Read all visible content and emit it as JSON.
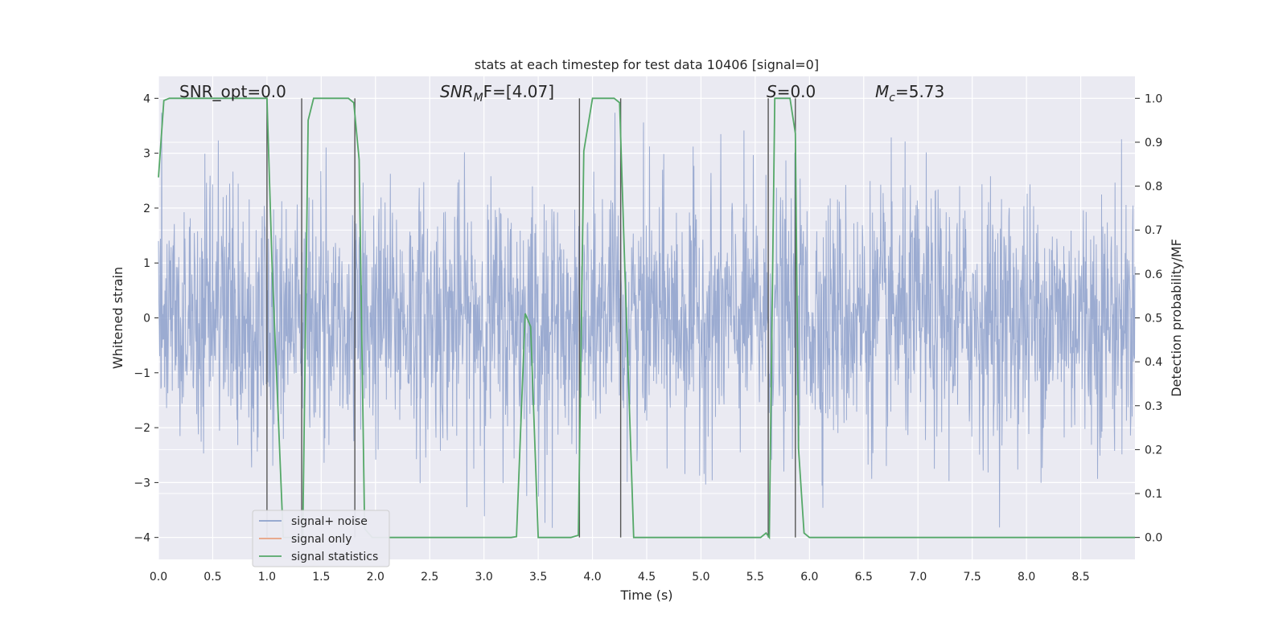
{
  "chart_data": {
    "type": "line",
    "title": "stats at each timestep for test data 10406 [signal=0]",
    "xlabel": "Time (s)",
    "ylabel": "Whitened strain",
    "y2label": "Detection probability/MF",
    "xlim": [
      0.0,
      9.0
    ],
    "ylim": [
      -4.4,
      4.4
    ],
    "y2lim": [
      -0.05,
      1.05
    ],
    "xticks": [
      "0.0",
      "0.5",
      "1.0",
      "1.5",
      "2.0",
      "2.5",
      "3.0",
      "3.5",
      "4.0",
      "4.5",
      "5.0",
      "5.5",
      "6.0",
      "6.5",
      "7.0",
      "7.5",
      "8.0",
      "8.5"
    ],
    "yticks": [
      "4",
      "3",
      "2",
      "1",
      "0",
      "−1",
      "−2",
      "−3",
      "−4"
    ],
    "y2ticks": [
      "1.0",
      "0.9",
      "0.8",
      "0.7",
      "0.6",
      "0.5",
      "0.4",
      "0.3",
      "0.2",
      "0.1",
      "0.0"
    ],
    "grid": true,
    "legend_position": "lower-left",
    "annotations": [
      {
        "id": "snr-opt",
        "text": "SNR_opt=0.0"
      },
      {
        "id": "snr-mf",
        "text": "F=[4.07]",
        "prefix": "SNR",
        "sub": "M"
      },
      {
        "id": "s-stat",
        "text": "=0.0",
        "prefix": "S"
      },
      {
        "id": "mc",
        "text": "=5.73",
        "prefix": "M",
        "sub": "c"
      }
    ],
    "series": [
      {
        "name": "signal+ noise",
        "color": "#8da0cb",
        "description": "whitened noise trace, unit variance, peaks around ±3.9",
        "x_range": [
          0.0,
          9.0
        ],
        "envelope": [
          -3.9,
          3.75
        ]
      },
      {
        "name": "signal only",
        "color": "#e8a07f",
        "x": [],
        "y": []
      },
      {
        "name": "signal statistics",
        "color": "#55a868",
        "axis": "right",
        "x": [
          0.0,
          0.05,
          0.1,
          0.95,
          1.0,
          1.05,
          1.1,
          1.15,
          1.2,
          1.28,
          1.33,
          1.38,
          1.43,
          1.5,
          1.75,
          1.8,
          1.85,
          1.9,
          1.97,
          2.05,
          3.25,
          3.3,
          3.38,
          3.43,
          3.5,
          3.8,
          3.87,
          3.92,
          4.0,
          4.2,
          4.25,
          4.3,
          4.38,
          4.45,
          5.55,
          5.6,
          5.63,
          5.68,
          5.82,
          5.87,
          5.9,
          5.95,
          6.0,
          9.0
        ],
        "y": [
          0.82,
          0.995,
          1.0,
          1.0,
          1.0,
          0.6,
          0.3,
          0.0,
          0.0,
          0.0,
          0.0,
          0.95,
          1.0,
          1.0,
          1.0,
          0.99,
          0.86,
          0.02,
          0.0,
          0.0,
          0.0,
          0.002,
          0.51,
          0.48,
          0.0,
          0.0,
          0.005,
          0.88,
          1.0,
          1.0,
          0.99,
          0.6,
          0.0,
          0.0,
          0.0,
          0.01,
          0.0,
          1.0,
          1.0,
          0.92,
          0.2,
          0.01,
          0.0,
          0.0
        ]
      }
    ],
    "vertical_lines": [
      1.0,
      1.32,
      1.81,
      3.88,
      4.26,
      5.62,
      5.87
    ],
    "vline_color": "#555555"
  }
}
